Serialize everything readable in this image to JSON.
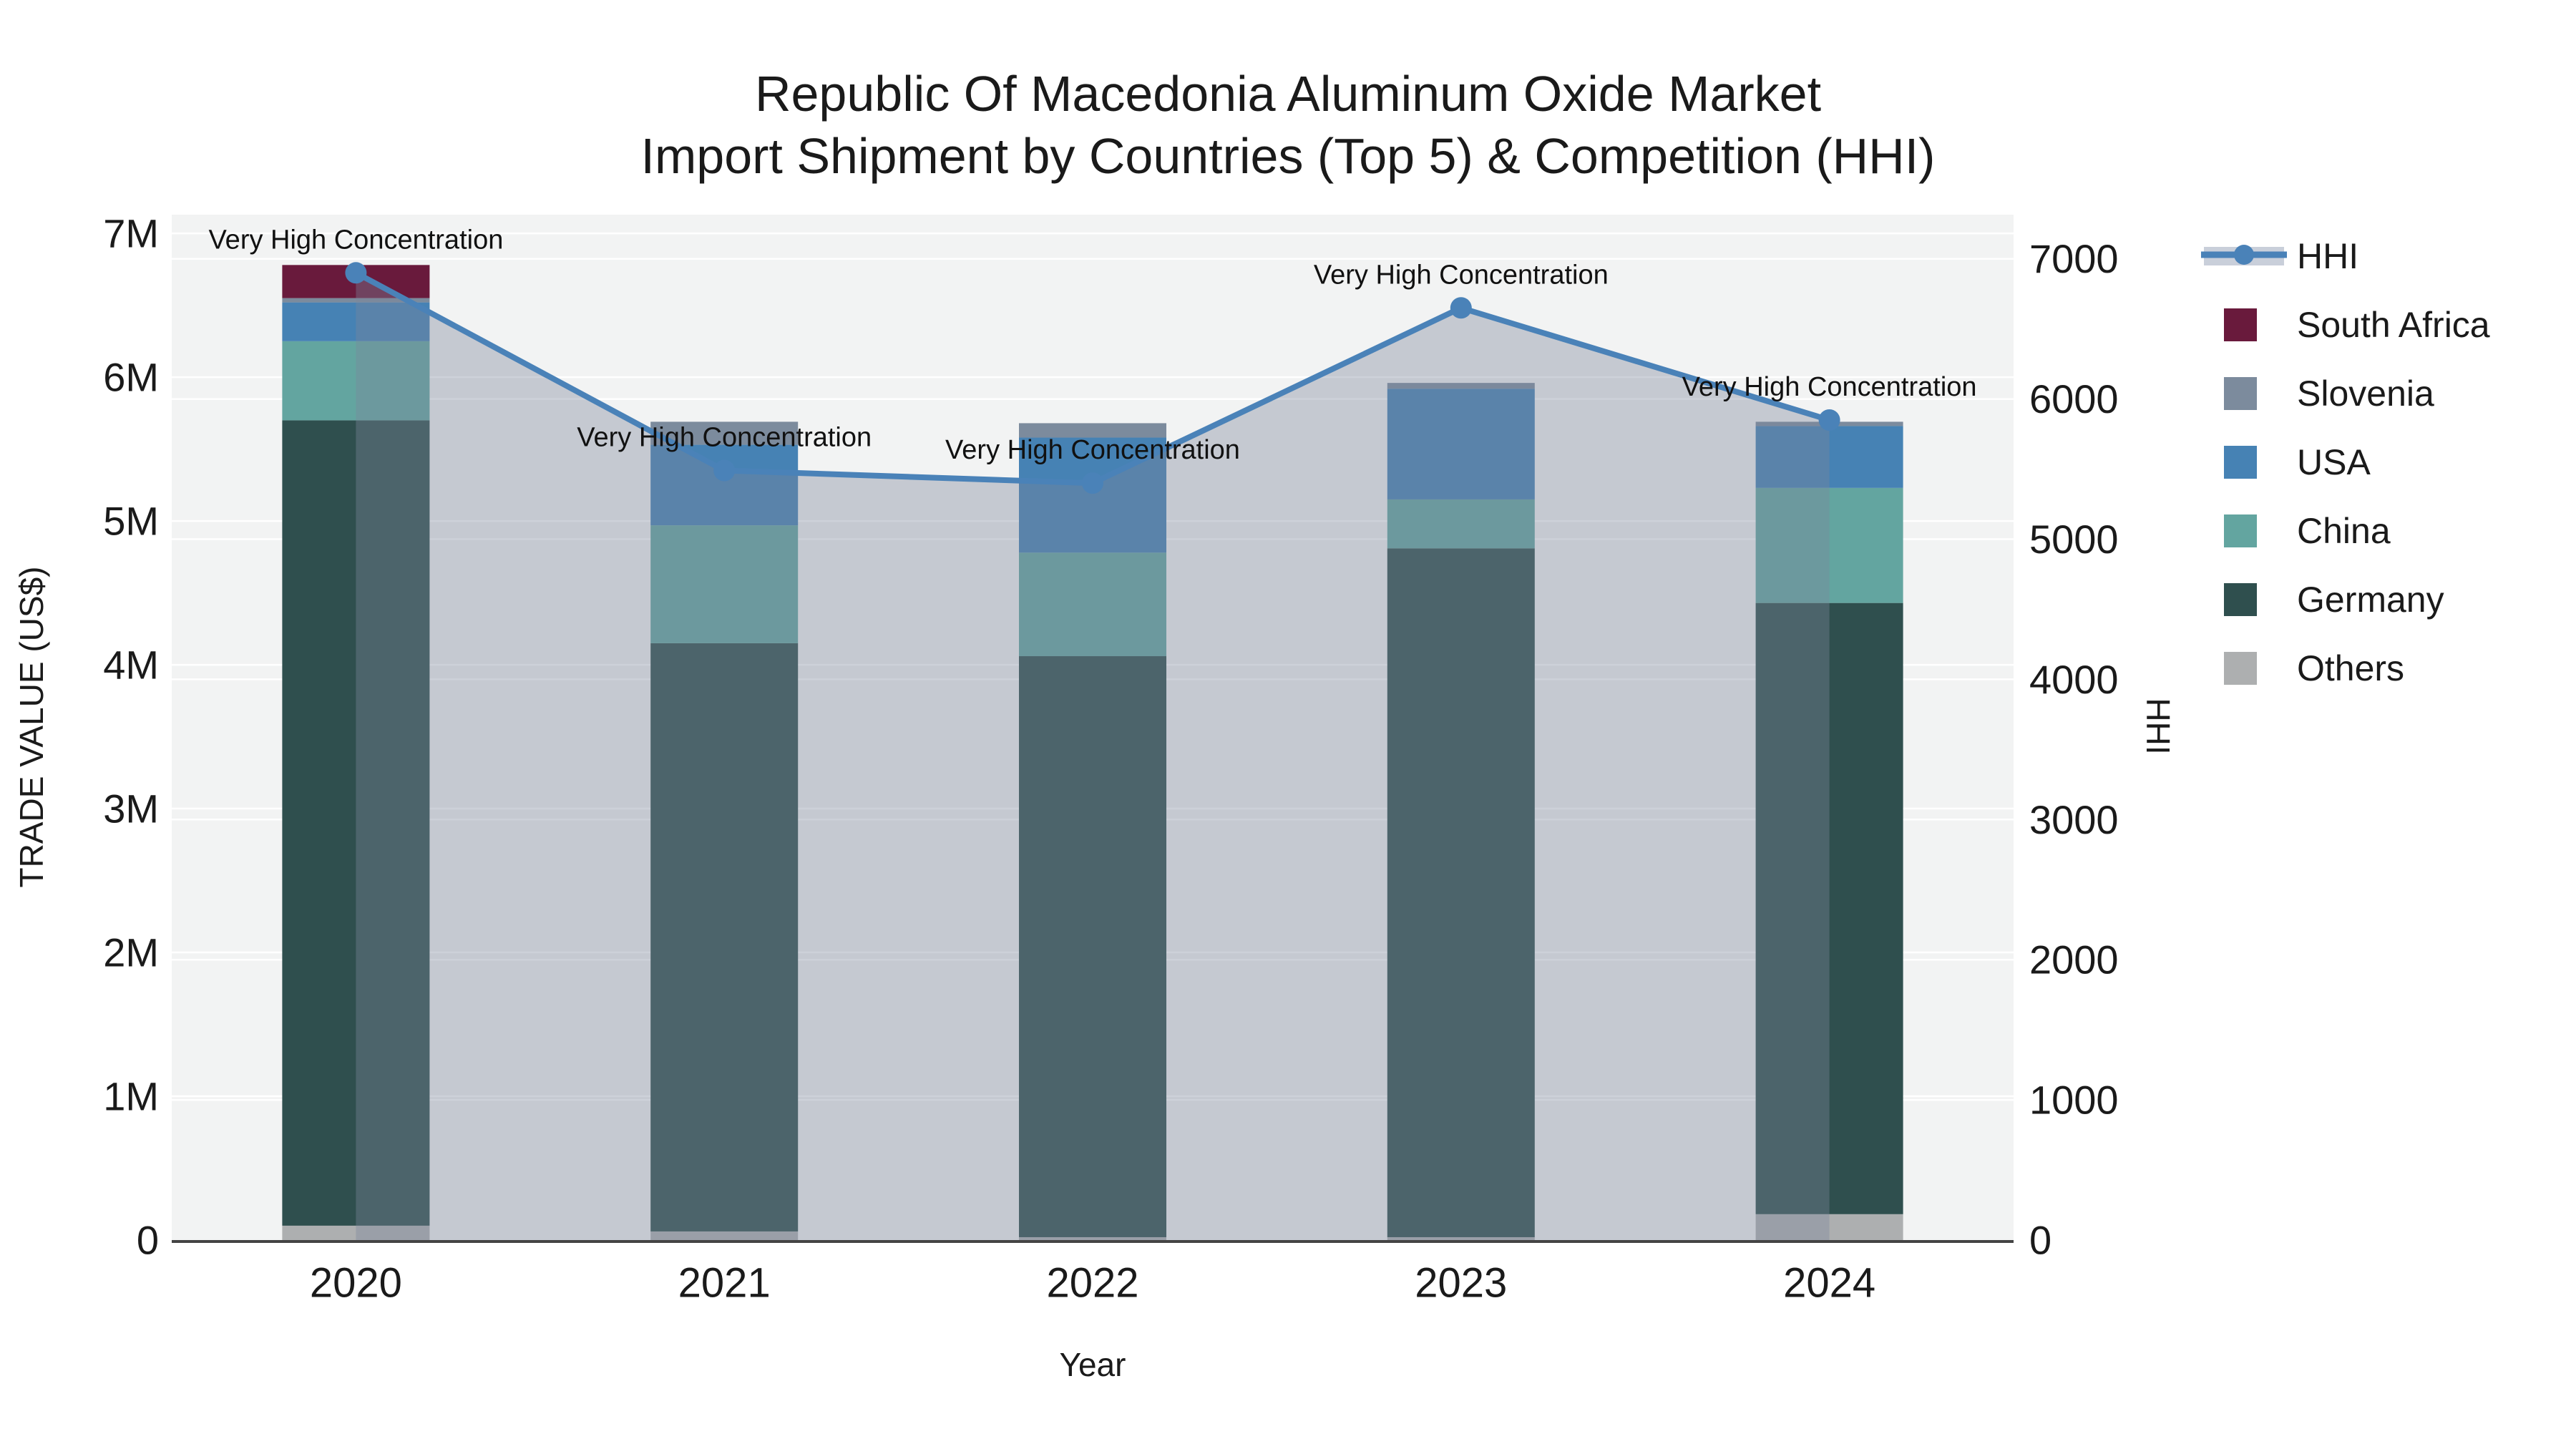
{
  "chart_data": {
    "type": "combo-stacked-bar-line",
    "title_line1": "Republic Of Macedonia Aluminum Oxide Market",
    "title_line2": "Import Shipment by Countries (Top 5) & Competition (HHI)",
    "xlabel": "Year",
    "ylabel_left": "TRADE VALUE (US$)",
    "ylabel_right": "HHI",
    "categories": [
      "2020",
      "2021",
      "2022",
      "2023",
      "2024"
    ],
    "bar_stack_order_note": "series listed bottom-to-top of stack; values in US$",
    "bar_series": [
      {
        "name": "Others",
        "color": "#ADAFB0",
        "values": [
          100000,
          60000,
          20000,
          20000,
          180000
        ]
      },
      {
        "name": "Germany",
        "color": "#2F4F4E",
        "values": [
          5600000,
          4090000,
          4040000,
          4790000,
          4250000
        ]
      },
      {
        "name": "China",
        "color": "#63A5A0",
        "values": [
          550000,
          820000,
          720000,
          340000,
          800000
        ]
      },
      {
        "name": "USA",
        "color": "#4682B4",
        "values": [
          270000,
          560000,
          800000,
          770000,
          430000
        ]
      },
      {
        "name": "Slovenia",
        "color": "#7C8B9D",
        "values": [
          30000,
          160000,
          100000,
          40000,
          30000
        ]
      },
      {
        "name": "South Africa",
        "color": "#691A3C",
        "values": [
          230000,
          0,
          0,
          0,
          0
        ]
      }
    ],
    "bar_totals": [
      6780000,
      5690000,
      5680000,
      5960000,
      5690000
    ],
    "line_series": {
      "name": "HHI",
      "color": "#4A82B8",
      "area_color": "#7C859B",
      "area_opacity": 0.38,
      "values": [
        6900,
        5490,
        5400,
        6650,
        5850
      ]
    },
    "annotations": [
      "Very High Concentration",
      "Very High Concentration",
      "Very High Concentration",
      "Very High Concentration",
      "Very High Concentration"
    ],
    "left_axis": {
      "ticks": [
        "0",
        "1M",
        "2M",
        "3M",
        "4M",
        "5M",
        "6M",
        "7M"
      ],
      "tick_step": 1000000,
      "max_value": 7130000
    },
    "right_axis": {
      "ticks": [
        "0",
        "1000",
        "2000",
        "3000",
        "4000",
        "5000",
        "6000",
        "7000"
      ],
      "tick_step": 1000,
      "max_value": 7315
    },
    "legend": [
      {
        "label": "HHI",
        "type": "line",
        "color": "#4A82B8"
      },
      {
        "label": "South Africa",
        "type": "swatch",
        "color": "#691A3C"
      },
      {
        "label": "Slovenia",
        "type": "swatch",
        "color": "#7C8B9D"
      },
      {
        "label": "USA",
        "type": "swatch",
        "color": "#4682B4"
      },
      {
        "label": "China",
        "type": "swatch",
        "color": "#63A5A0"
      },
      {
        "label": "Germany",
        "type": "swatch",
        "color": "#2F4F4E"
      },
      {
        "label": "Others",
        "type": "swatch",
        "color": "#ADAFB0"
      }
    ],
    "plot_bg": "#F2F3F3",
    "grid_color": "#FFFFFF",
    "axis_line_color": "#444444",
    "legend_band_color": "#C9CFDA"
  }
}
